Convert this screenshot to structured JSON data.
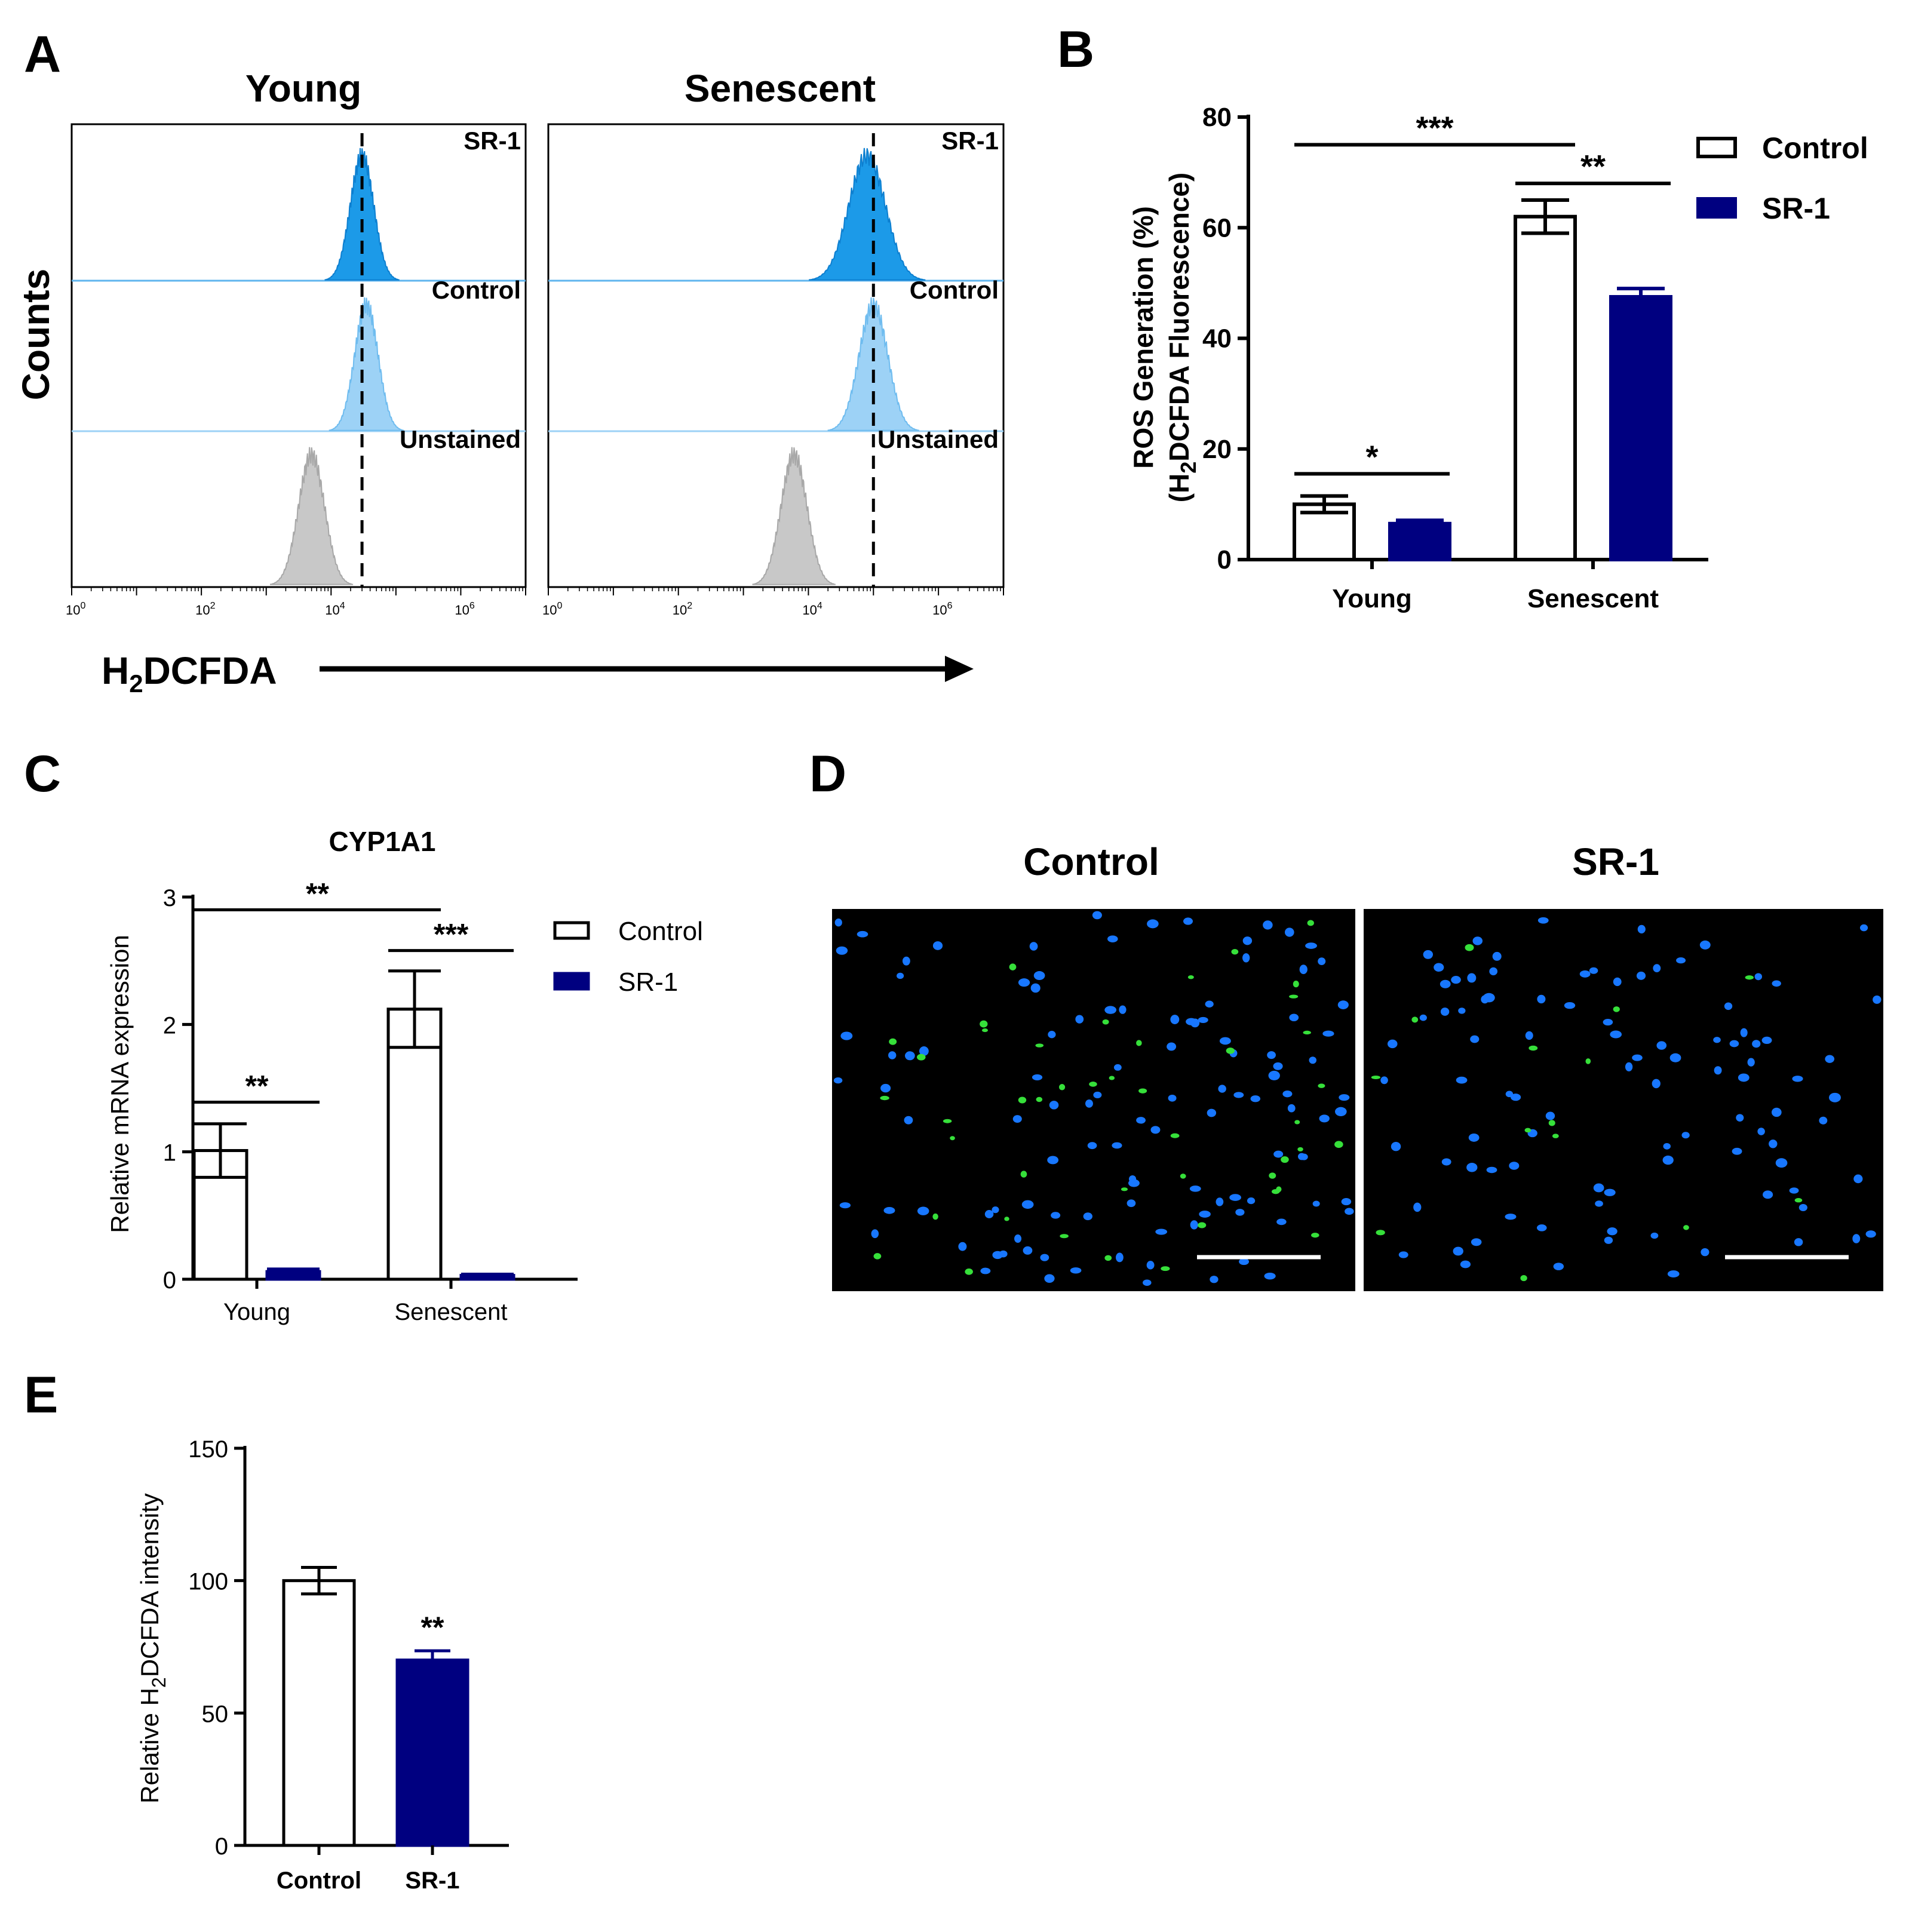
{
  "panel_labels": {
    "a": "A",
    "b": "B",
    "c": "C",
    "d": "D",
    "e": "E"
  },
  "colors": {
    "control": "#ffffff",
    "sr1": "#000080",
    "sr1_hist": "#1c9ae8",
    "control_hist": "#9dd2f6",
    "unstained_hist": "#c8c8c8",
    "nucleus": "#1877ff",
    "ros": "#36e03a"
  },
  "chart_data": [
    {
      "id": "A",
      "type": "histogram",
      "titles": [
        "Young",
        "Senescent"
      ],
      "ylabel": "Counts",
      "xlabel": {
        "main": "H",
        "sub": "2",
        "rest": "DCFDA"
      },
      "x_scale": "log",
      "xlim": [
        1,
        10000000
      ],
      "x_tick_labels": [
        {
          "base": "10",
          "exp": "0"
        },
        {
          "base": "10",
          "exp": "2"
        },
        {
          "base": "10",
          "exp": "4"
        },
        {
          "base": "10",
          "exp": "6"
        }
      ],
      "tracks": [
        "SR-1",
        "Control",
        "Unstained"
      ],
      "series": [
        {
          "panel": "Young",
          "track": "SR-1",
          "peak": 30000,
          "width": 0.18
        },
        {
          "panel": "Young",
          "track": "Control",
          "peak": 35000,
          "width": 0.18
        },
        {
          "panel": "Young",
          "track": "Unstained",
          "peak": 5000,
          "width": 0.2
        },
        {
          "panel": "Senescent",
          "track": "SR-1",
          "peak": 80000,
          "width": 0.28
        },
        {
          "panel": "Senescent",
          "track": "Control",
          "peak": 100000,
          "width": 0.22
        },
        {
          "panel": "Senescent",
          "track": "Unstained",
          "peak": 6000,
          "width": 0.2
        }
      ],
      "reference_line_x": {
        "Young": 30000,
        "Senescent": 100000
      }
    },
    {
      "id": "B",
      "type": "bar",
      "categories": [
        "Young",
        "Senescent"
      ],
      "series": [
        {
          "name": "Control",
          "values": [
            10,
            62
          ],
          "errors": [
            1.5,
            3
          ]
        },
        {
          "name": "SR-1",
          "values": [
            6.5,
            47.5
          ],
          "errors": [
            0.6,
            1.5
          ]
        }
      ],
      "ylabel": "ROS Generation (%)",
      "ylabel2": {
        "main": "(H",
        "sub": "2",
        "rest": "DCFDA Fluorescence)"
      },
      "ylim": [
        0,
        80
      ],
      "yticks": [
        0,
        20,
        40,
        60,
        80
      ],
      "legend": "top-right",
      "annotations": [
        {
          "text": "*",
          "from": [
            0,
            0
          ],
          "to": [
            0,
            1
          ],
          "y": 15.5
        },
        {
          "text": "**",
          "from": [
            1,
            0
          ],
          "to": [
            1,
            1
          ],
          "y": 68
        },
        {
          "text": "***",
          "from": [
            0,
            0
          ],
          "to": [
            1,
            0
          ],
          "y": 75
        }
      ]
    },
    {
      "id": "C",
      "type": "bar",
      "title": "CYP1A1",
      "categories": [
        "Young",
        "Senescent"
      ],
      "series": [
        {
          "name": "Control",
          "values": [
            1.01,
            2.12
          ],
          "errors": [
            0.21,
            0.3
          ]
        },
        {
          "name": "SR-1",
          "values": [
            0.06,
            0.03
          ],
          "errors": [
            0.02,
            0.01
          ]
        }
      ],
      "ylabel": "Relative mRNA expression",
      "ylim": [
        0,
        3
      ],
      "yticks": [
        0,
        1,
        2,
        3
      ],
      "legend": "top-right",
      "annotations": [
        {
          "text": "**",
          "from": [
            0,
            0
          ],
          "to": [
            0,
            1
          ],
          "y": 1.39
        },
        {
          "text": "***",
          "from": [
            1,
            0
          ],
          "to": [
            1,
            1
          ],
          "y": 2.58
        },
        {
          "text": "**",
          "from": [
            0,
            0
          ],
          "to": [
            1,
            0
          ],
          "y": 2.9
        }
      ]
    },
    {
      "id": "E",
      "type": "bar",
      "categories": [
        "Control",
        "SR-1"
      ],
      "values": [
        100,
        70
      ],
      "errors": [
        5,
        3.5
      ],
      "ylabel": {
        "main": "Relative H",
        "sub": "2",
        "rest": "DCFDA intensity"
      },
      "ylim": [
        0,
        150
      ],
      "yticks": [
        0,
        50,
        100,
        150
      ],
      "annotations": [
        {
          "text": "**",
          "bar": 1
        }
      ]
    }
  ],
  "panel_d": {
    "labels": [
      "Control",
      "SR-1"
    ]
  }
}
